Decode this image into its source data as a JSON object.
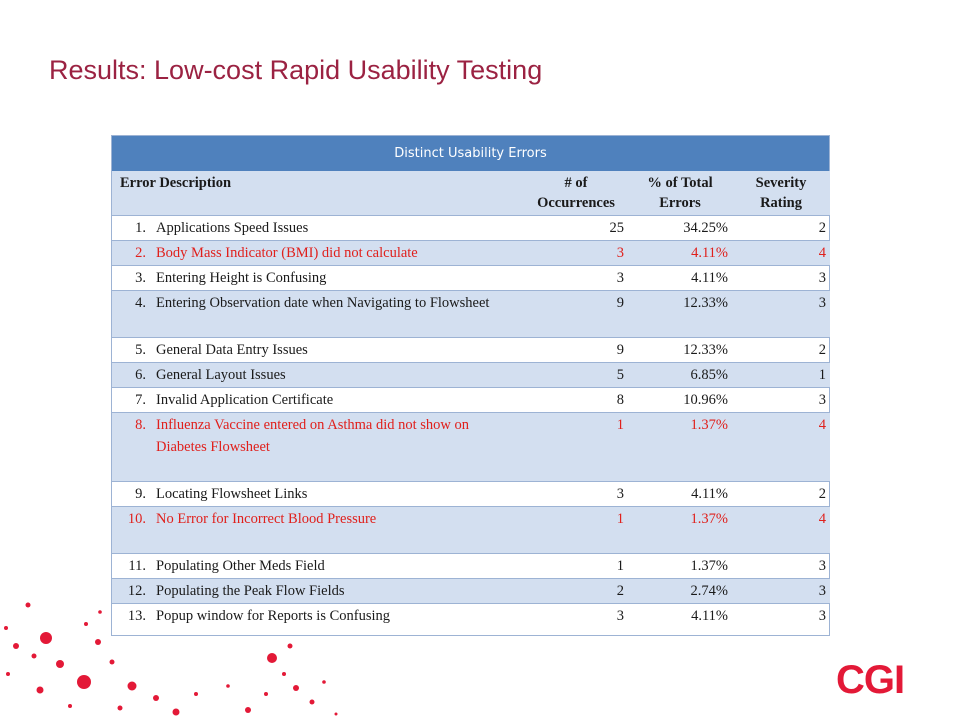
{
  "slide": {
    "title": "Results: Low-cost Rapid Usability Testing",
    "logo_text": "CGI",
    "accent_color": "#9b2242",
    "logo_color": "#e31937"
  },
  "table": {
    "caption": "Distinct Usability Errors",
    "header_color": "#4f81bd",
    "band_color": "#d3dff0",
    "highlight_color": "#e0201c",
    "columns": {
      "description": "Error Description",
      "occurrences_line1": "# of",
      "occurrences_line2": "Occurrences",
      "percent_line1": "% of Total",
      "percent_line2": "Errors",
      "severity_line1": "Severity",
      "severity_line2": "Rating"
    },
    "rows": [
      {
        "num": "1.",
        "desc": "Applications Speed Issues",
        "occ": "25",
        "pct": "34.25%",
        "sev": "2"
      },
      {
        "num": "2.",
        "desc": "Body Mass Indicator (BMI) did not calculate",
        "occ": "3",
        "pct": "4.11%",
        "sev": "4"
      },
      {
        "num": "3.",
        "desc": "Entering Height is Confusing",
        "occ": "3",
        "pct": "4.11%",
        "sev": "3"
      },
      {
        "num": "4.",
        "desc": "Entering Observation date when Navigating to Flowsheet",
        "occ": "9",
        "pct": "12.33%",
        "sev": "3"
      },
      {
        "num": "5.",
        "desc": "General Data Entry Issues",
        "occ": "9",
        "pct": "12.33%",
        "sev": "2"
      },
      {
        "num": "6.",
        "desc": "General Layout Issues",
        "occ": "5",
        "pct": "6.85%",
        "sev": "1"
      },
      {
        "num": "7.",
        "desc": "Invalid Application Certificate",
        "occ": "8",
        "pct": "10.96%",
        "sev": "3"
      },
      {
        "num": "8.",
        "desc": "Influenza Vaccine entered on Asthma did not show on Diabetes Flowsheet",
        "occ": "1",
        "pct": "1.37%",
        "sev": "4"
      },
      {
        "num": "9.",
        "desc": "Locating Flowsheet Links",
        "occ": "3",
        "pct": "4.11%",
        "sev": "2"
      },
      {
        "num": "10.",
        "desc": "No Error for Incorrect Blood Pressure",
        "occ": "1",
        "pct": "1.37%",
        "sev": "4"
      },
      {
        "num": "11.",
        "desc": "Populating Other Meds Field",
        "occ": "1",
        "pct": "1.37%",
        "sev": "3"
      },
      {
        "num": "12.",
        "desc": "Populating the Peak Flow Fields",
        "occ": "2",
        "pct": "2.74%",
        "sev": "3"
      },
      {
        "num": "13.",
        "desc": "Popup window for Reports is Confusing",
        "occ": "3",
        "pct": "4.11%",
        "sev": "3"
      }
    ]
  }
}
